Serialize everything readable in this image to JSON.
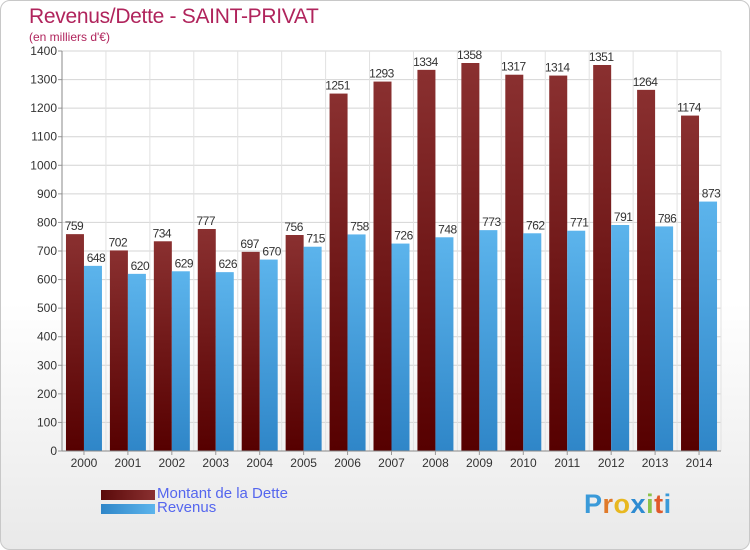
{
  "header": {
    "title": "Revenus/Dette - SAINT-PRIVAT",
    "subtitle": "(en milliers d'€)"
  },
  "legend": {
    "debt_label": "Montant de la Dette",
    "revenue_label": "Revenus"
  },
  "logo": {
    "letters": [
      "P",
      "r",
      "o",
      "x",
      "i",
      "t",
      "i"
    ],
    "colors": [
      "#3a9ad9",
      "#e07a2a",
      "#e8b820",
      "#2e8bd1",
      "#8bc34a",
      "#e05a2a",
      "#3a9ad9"
    ]
  },
  "colors": {
    "debt": "#6b1212",
    "revenue": "#4aa3e0",
    "title": "#b0245c",
    "legend_text": "#5566ee"
  },
  "chart_data": {
    "type": "bar",
    "categories": [
      "2000",
      "2001",
      "2002",
      "2003",
      "2004",
      "2005",
      "2006",
      "2007",
      "2008",
      "2009",
      "2010",
      "2011",
      "2012",
      "2013",
      "2014"
    ],
    "series": [
      {
        "name": "Montant de la Dette",
        "values": [
          759,
          702,
          734,
          777,
          697,
          756,
          1251,
          1293,
          1334,
          1358,
          1317,
          1314,
          1351,
          1264,
          1174
        ]
      },
      {
        "name": "Revenus",
        "values": [
          648,
          620,
          629,
          626,
          670,
          715,
          758,
          726,
          748,
          773,
          762,
          771,
          791,
          786,
          873
        ]
      }
    ],
    "ylim": [
      0,
      1400
    ],
    "yticks": [
      0,
      100,
      200,
      300,
      400,
      500,
      600,
      700,
      800,
      900,
      1000,
      1100,
      1200,
      1300,
      1400
    ],
    "grid": true,
    "legend_position": "bottom-left"
  }
}
